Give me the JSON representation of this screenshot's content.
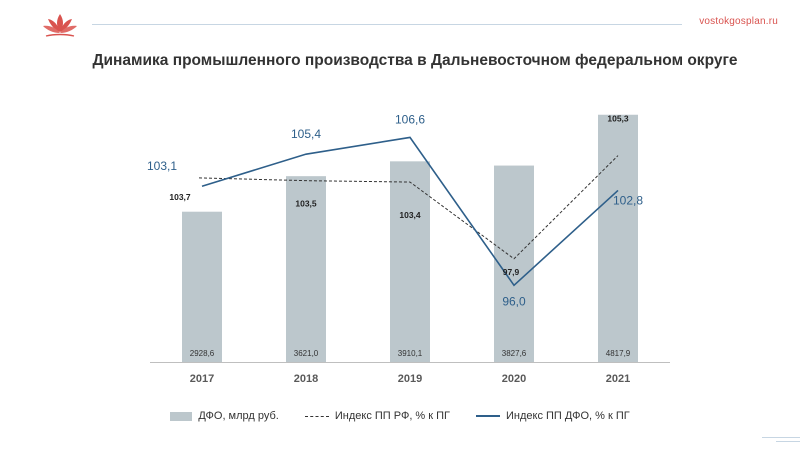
{
  "header": {
    "site": "vostokgosplan.ru",
    "logo_icon": "lotus-logo-icon",
    "accent_color": "#d9534f"
  },
  "chart_data": {
    "type": "bar",
    "title": "Динамика промышленного производства в Дальневосточном федеральном округе",
    "categories": [
      "2017",
      "2018",
      "2019",
      "2020",
      "2021"
    ],
    "series": [
      {
        "name": "ДФО, млрд руб.",
        "kind": "bar",
        "color": "#bcc7cc",
        "values": [
          2928.6,
          3621.0,
          3910.1,
          3827.6,
          4817.9
        ],
        "labels": [
          "2928,6",
          "3621,0",
          "3910,1",
          "3827,6",
          "4817,9"
        ]
      },
      {
        "name": "Индекс ПП РФ, % к ПГ",
        "kind": "line",
        "style": "dashed",
        "color": "#333333",
        "values": [
          103.7,
          103.5,
          103.4,
          97.9,
          105.3
        ],
        "labels": [
          "103,7",
          "103,5",
          "103,4",
          "97,9",
          "105,3"
        ]
      },
      {
        "name": "Индекс ПП ДФО, % к ПГ",
        "kind": "line",
        "style": "solid",
        "color": "#2e5f8a",
        "values": [
          103.1,
          105.4,
          106.6,
          96.0,
          102.8
        ],
        "labels": [
          "103,1",
          "105,4",
          "106,6",
          "96,0",
          "102,8"
        ]
      }
    ],
    "bar_axis": {
      "min": 0,
      "max": 5300
    },
    "index_axis": {
      "min": 90.5,
      "max": 110
    },
    "grid": false,
    "legend_position": "bottom"
  }
}
